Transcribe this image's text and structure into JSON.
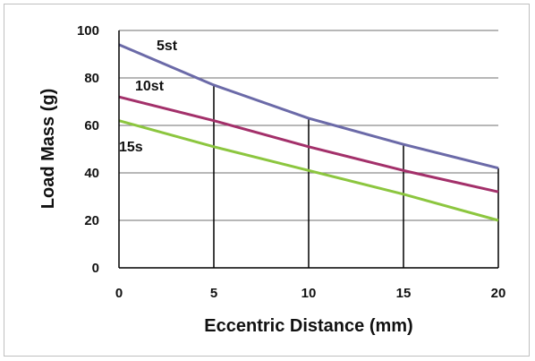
{
  "chart_data": {
    "type": "line",
    "xlabel": "Eccentric Distance (mm)",
    "ylabel": "Load Mass (g)",
    "xlim": [
      0,
      20
    ],
    "ylim": [
      0,
      100
    ],
    "x_ticks": [
      "0",
      "5",
      "10",
      "15",
      "20"
    ],
    "y_ticks": [
      "0",
      "20",
      "40",
      "60",
      "80",
      "100"
    ],
    "grid": "horizontal",
    "x": [
      0,
      5,
      10,
      15,
      20
    ],
    "series": [
      {
        "name": "5st",
        "values": [
          94,
          77,
          63,
          52,
          42
        ],
        "color": "#6b6aa8"
      },
      {
        "name": "10st",
        "values": [
          72,
          62,
          51,
          41,
          32
        ],
        "color": "#a3306a"
      },
      {
        "name": "15s",
        "values": [
          62,
          51,
          41,
          31,
          20
        ],
        "color": "#8cc63f"
      }
    ]
  }
}
